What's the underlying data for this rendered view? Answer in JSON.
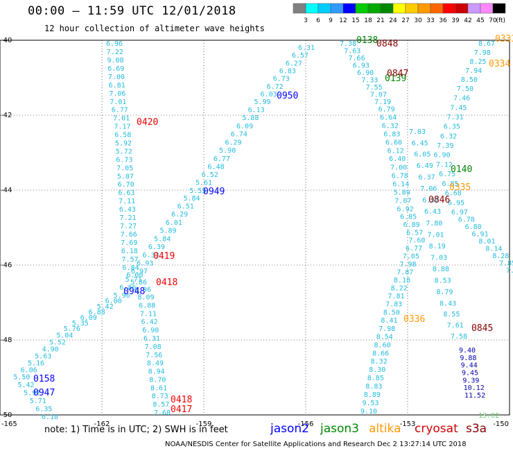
{
  "header": {
    "title": "00:00 — 11:59 UTC 12/01/2018",
    "subtitle": "12 hour collection of altimeter wave heights"
  },
  "footer": {
    "note": "note:  1) Time is in UTC;  2) SWH is in feet",
    "credit": "NOAA/NESDIS Center for Satellite Applications and Research     Dec  2 13:27:14 UTC 2018"
  },
  "satellites": [
    {
      "name": "jason2",
      "color": "#0000ff"
    },
    {
      "name": "jason3",
      "color": "#008800"
    },
    {
      "name": "altika",
      "color": "#ff9900"
    },
    {
      "name": "cryosat",
      "color": "#cc0000"
    },
    {
      "name": "s3a",
      "color": "#880000"
    }
  ],
  "chart_data": {
    "type": "scatter",
    "title": "00:00 — 11:59 UTC 12/01/2018",
    "xlim": [
      -165,
      -150
    ],
    "ylim": [
      -50,
      -40
    ],
    "x_ticks": [
      "-165",
      "-162",
      "-159",
      "-156",
      "-153",
      "-150"
    ],
    "y_ticks": [
      "-40",
      "-42",
      "-44",
      "-46",
      "-48",
      "-50"
    ],
    "grid": "dotted",
    "color_scale": {
      "unit": "(ft)",
      "thresholds": [
        "3",
        "6",
        "9",
        "12",
        "15",
        "18",
        "21",
        "24",
        "27",
        "30",
        "33",
        "36",
        "39",
        "42",
        "45",
        "70"
      ],
      "colors": [
        "#808080",
        "#00ffff",
        "#00ccff",
        "#3399ff",
        "#0000ff",
        "#00cc00",
        "#00aa00",
        "#008800",
        "#ffff00",
        "#ffcc00",
        "#ff9900",
        "#ff6600",
        "#ff0000",
        "#cc0000",
        "#cc99ff",
        "#ff88ff",
        "#000000"
      ]
    },
    "tracks": [
      {
        "name": "track-a",
        "color": "#22bbdd",
        "values": [
          "6.96",
          "7.22",
          "9.08",
          "6.69",
          "7.00",
          "6.81",
          "7.06",
          "7.01",
          "6.77",
          "7.01",
          "7.17",
          "6.58",
          "5.92",
          "5.72",
          "6.73",
          "7.05",
          "5.87",
          "6.70",
          "6.63",
          "7.11",
          "6.43",
          "7.21",
          "7.27",
          "7.66",
          "7.69",
          "6.18",
          "7.57",
          "6.84",
          "6.00",
          "5.86",
          "6.96",
          "8.09",
          "6.88",
          "7.11",
          "6.42",
          "6.90",
          "6.31",
          "7.08",
          "7.56",
          "8.49",
          "8.94",
          "8.70",
          "8.61",
          "8.73",
          "8.57",
          "7.68"
        ]
      },
      {
        "name": "track-b",
        "color": "#22bbdd",
        "values": [
          "6.31",
          "6.57",
          "6.27",
          "6.83",
          "6.73",
          "6.72",
          "6.03",
          "5.99",
          "6.13",
          "5.88",
          "6.09",
          "6.74",
          "6.29",
          "5.90",
          "6.77",
          "6.48",
          "6.52",
          "5.61",
          "5.55",
          "5.84",
          "6.51",
          "6.29",
          "6.01",
          "5.89",
          "5.84",
          "6.39",
          "6.33",
          "6.93",
          "6.97",
          "5.71",
          "6.86",
          "5.96",
          "6.00",
          "5.42",
          "6.88",
          "6.09",
          "5.35",
          "5.76",
          "5.04",
          "5.52",
          "4.90",
          "5.63",
          "5.16",
          "6.06",
          "5.50",
          "5.42",
          "5.92",
          "5.71",
          "6.35",
          "6.18"
        ]
      },
      {
        "name": "track-c",
        "color": "#22bbdd",
        "values": [
          "7.38",
          "7.63",
          "7.66",
          "6.93",
          "6.90",
          "7.33",
          "7.55",
          "7.07",
          "7.19",
          "6.79",
          "6.64",
          "6.32",
          "6.83",
          "6.60",
          "6.12",
          "6.40",
          "7.00",
          "6.78",
          "6.14",
          "5.89",
          "7.07",
          "6.92",
          "6.85",
          "6.89",
          "6.57",
          "7.60",
          "6.77",
          "7.05",
          "7.98",
          "7.87",
          "8.18",
          "8.22",
          "7.81",
          "7.83",
          "8.50",
          "8.41",
          "7.98",
          "8.54",
          "8.60",
          "8.66",
          "8.32",
          "8.30",
          "8.85",
          "8.83",
          "8.89",
          "9.53",
          "9.10"
        ]
      },
      {
        "name": "track-d",
        "color": "#22bbdd",
        "values": [
          "8.67",
          "7.98",
          "8.25",
          "7.94",
          "8.50",
          "7.50",
          "7.46",
          "7.45",
          "7.31",
          "6.35",
          "6.32",
          "7.39",
          "6.90",
          "7.12",
          "6.75",
          "6.85",
          "6.68",
          "6.95",
          "6.97",
          "6.78",
          "6.80",
          "6.91",
          "8.01",
          "8.14",
          "8.28",
          "7.85",
          "7.9"
        ]
      },
      {
        "name": "track-e",
        "color": "#22bbdd",
        "values": [
          "7.83",
          "6.45",
          "6.05",
          "6.49",
          "6.37",
          "7.06",
          "6.32",
          "6.43",
          "7.80",
          "7.01",
          "8.19",
          "7.03",
          "8.88",
          "8.53",
          "8.79",
          "8.43",
          "8.55",
          "7.61",
          "7.58"
        ]
      },
      {
        "name": "track-e-dark",
        "color": "#0000aa",
        "values": [
          "9.40",
          "9.88",
          "9.44",
          "9.45",
          "9.39",
          "10.12",
          "11.52"
        ]
      },
      {
        "name": "track-e-green",
        "color": "#66cc66",
        "values": [
          "13.02"
        ]
      }
    ],
    "time_labels": [
      {
        "text": "0420",
        "color": "#ee0000"
      },
      {
        "text": "0419",
        "color": "#ee0000"
      },
      {
        "text": "0418",
        "color": "#ee0000"
      },
      {
        "text": "0418",
        "color": "#ee0000"
      },
      {
        "text": "0417",
        "color": "#ee0000"
      },
      {
        "text": "0950",
        "color": "#0000ff"
      },
      {
        "text": "0949",
        "color": "#0000ff"
      },
      {
        "text": "0948",
        "color": "#0000ff"
      },
      {
        "text": "0158",
        "color": "#0000ff"
      },
      {
        "text": "0947",
        "color": "#0000ff"
      },
      {
        "text": "0138",
        "color": "#008800"
      },
      {
        "text": "0139",
        "color": "#008800"
      },
      {
        "text": "0140",
        "color": "#008800"
      },
      {
        "text": "0848",
        "color": "#880000"
      },
      {
        "text": "0847",
        "color": "#880000"
      },
      {
        "text": "0846",
        "color": "#880000"
      },
      {
        "text": "0845",
        "color": "#880000"
      },
      {
        "text": "0333",
        "color": "#ff9900"
      },
      {
        "text": "0334",
        "color": "#ff9900"
      },
      {
        "text": "0335",
        "color": "#ff9900"
      },
      {
        "text": "0336",
        "color": "#ff9900"
      }
    ]
  }
}
